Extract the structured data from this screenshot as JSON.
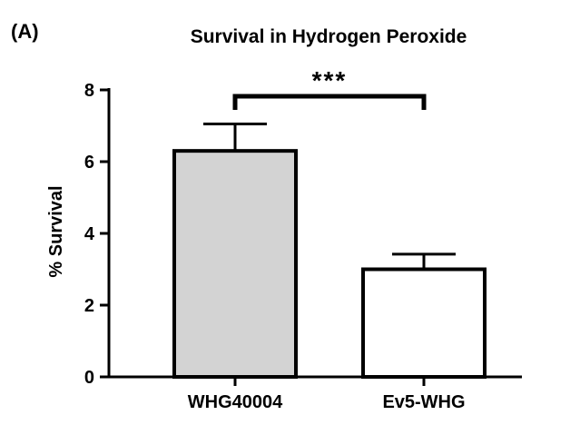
{
  "chart_data": {
    "type": "bar",
    "panel_label": "(A)",
    "title": "Survival in Hydrogen Peroxide",
    "xlabel": "",
    "ylabel": "% Survival",
    "ylim": [
      0,
      8
    ],
    "yticks": [
      0,
      2,
      4,
      6,
      8
    ],
    "categories": [
      "WHG40004",
      "Ev5-WHG"
    ],
    "values": [
      6.3,
      3.0
    ],
    "errors": [
      0.75,
      0.42
    ],
    "bar_colors": [
      "#d3d3d3",
      "#ffffff"
    ],
    "edge_color": "#000000",
    "significance": {
      "label": "***",
      "between": [
        0,
        1
      ]
    },
    "grid": false,
    "legend": "none"
  }
}
